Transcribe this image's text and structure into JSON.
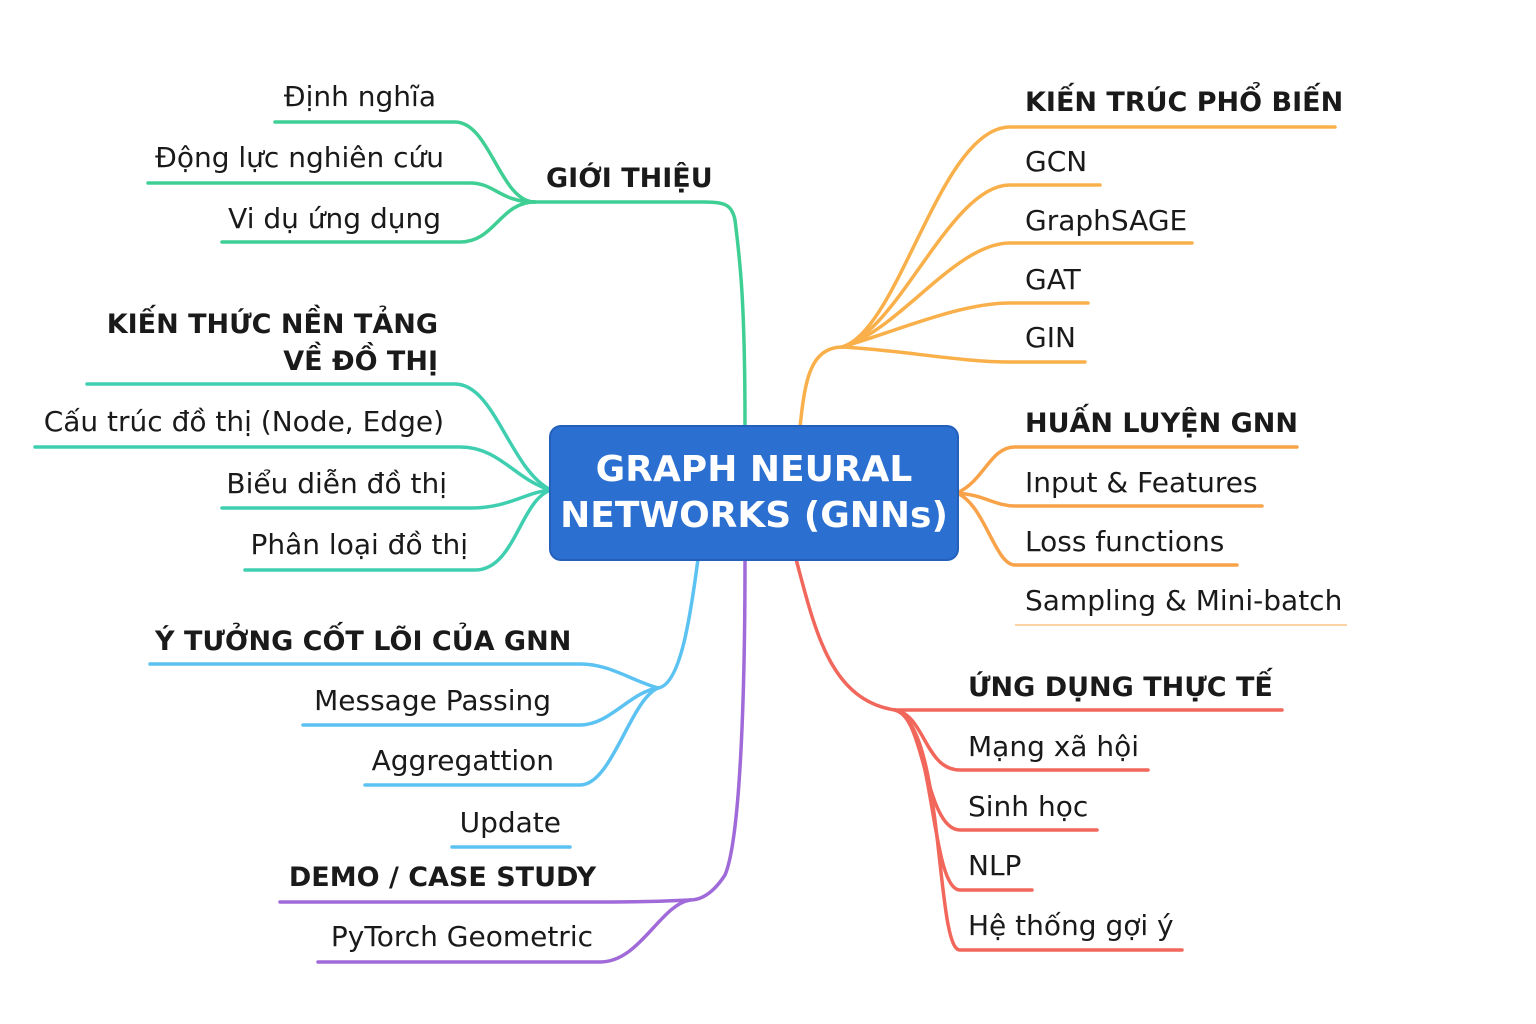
{
  "root": {
    "line1": "GRAPH NEURAL",
    "line2": "NETWORKS (GNNs)"
  },
  "branches": {
    "gioi_thieu": {
      "title": "GIỚI THIỆU",
      "color": "#3fcf95",
      "items": [
        "Định nghĩa",
        "Động lực nghiên cứu",
        "Vi dụ ứng dụng"
      ]
    },
    "kien_thuc": {
      "title_line1": "KIẾN THỨC NỀN TẢNG",
      "title_line2": "VỀ ĐỒ THỊ",
      "color": "#3fcfb0",
      "items": [
        "Cấu trúc đồ thị (Node, Edge)",
        "Biểu diễn đồ thị",
        "Phân loại đồ thị"
      ]
    },
    "y_tuong": {
      "title": "Ý TƯỞNG CỐT LÕI CỦA GNN",
      "color": "#5bc2f2",
      "items": [
        "Message Passing",
        "Aggregattion",
        "Update"
      ]
    },
    "demo": {
      "title": "DEMO / CASE STUDY",
      "color": "#a06ad8",
      "items": [
        "PyTorch Geometric"
      ]
    },
    "kien_truc": {
      "title": "KIẾN TRÚC PHỔ BIẾN",
      "color": "#f9b04a",
      "items": [
        "GCN",
        "GraphSAGE",
        "GAT",
        "GIN"
      ]
    },
    "huan_luyen": {
      "title": "HUẤN LUYỆN GNN",
      "color": "#f8a34a",
      "items": [
        "Input & Features",
        "Loss functions",
        "Sampling & Mini-batch"
      ]
    },
    "ung_dung": {
      "title": "ỨNG DỤNG THỰC TẾ",
      "color": "#f2675b",
      "items": [
        "Mạng xã hội",
        "Sinh học",
        "NLP",
        "Hệ thống gợi ý"
      ]
    }
  }
}
